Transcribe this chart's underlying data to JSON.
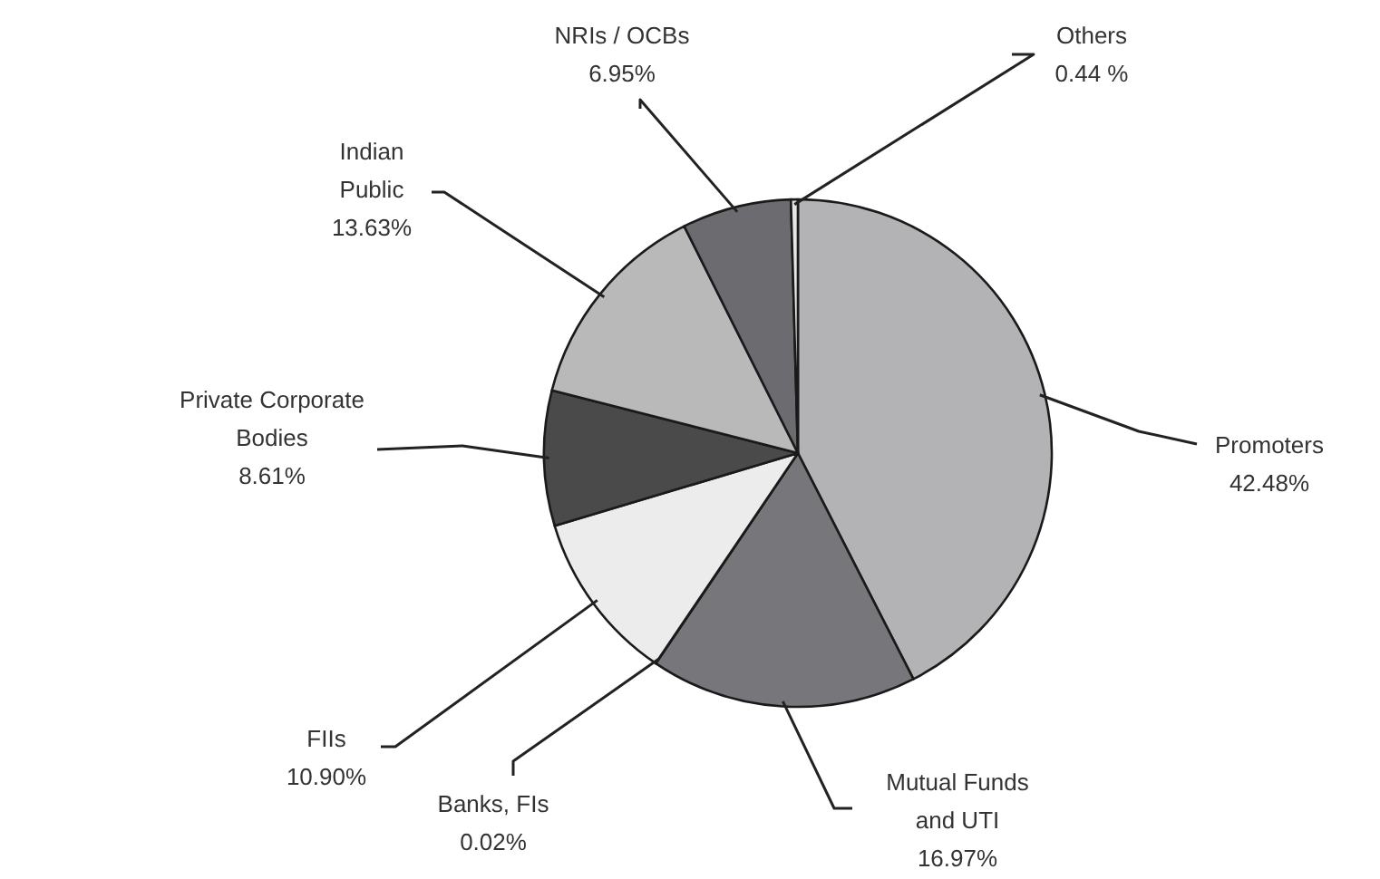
{
  "chart_data": {
    "type": "pie",
    "categories": [
      "Promoters",
      "Mutual Funds and UTI",
      "Banks, FIs",
      "FIIs",
      "Private Corporate Bodies",
      "Indian Public",
      "NRIs / OCBs",
      "Others"
    ],
    "values": [
      42.48,
      16.97,
      0.02,
      10.9,
      8.61,
      13.63,
      6.95,
      0.44
    ],
    "value_labels": [
      "42.48%",
      "16.97%",
      "0.02%",
      "10.90%",
      "8.61%",
      "13.63%",
      "6.95%",
      "0.44 %"
    ],
    "colors": [
      "#b3b3b6",
      "#77777b",
      "#d0d0d0",
      "#ececec",
      "#4a4a4a",
      "#b9b9b9",
      "#6c6c70",
      "#e6e6e6"
    ]
  }
}
